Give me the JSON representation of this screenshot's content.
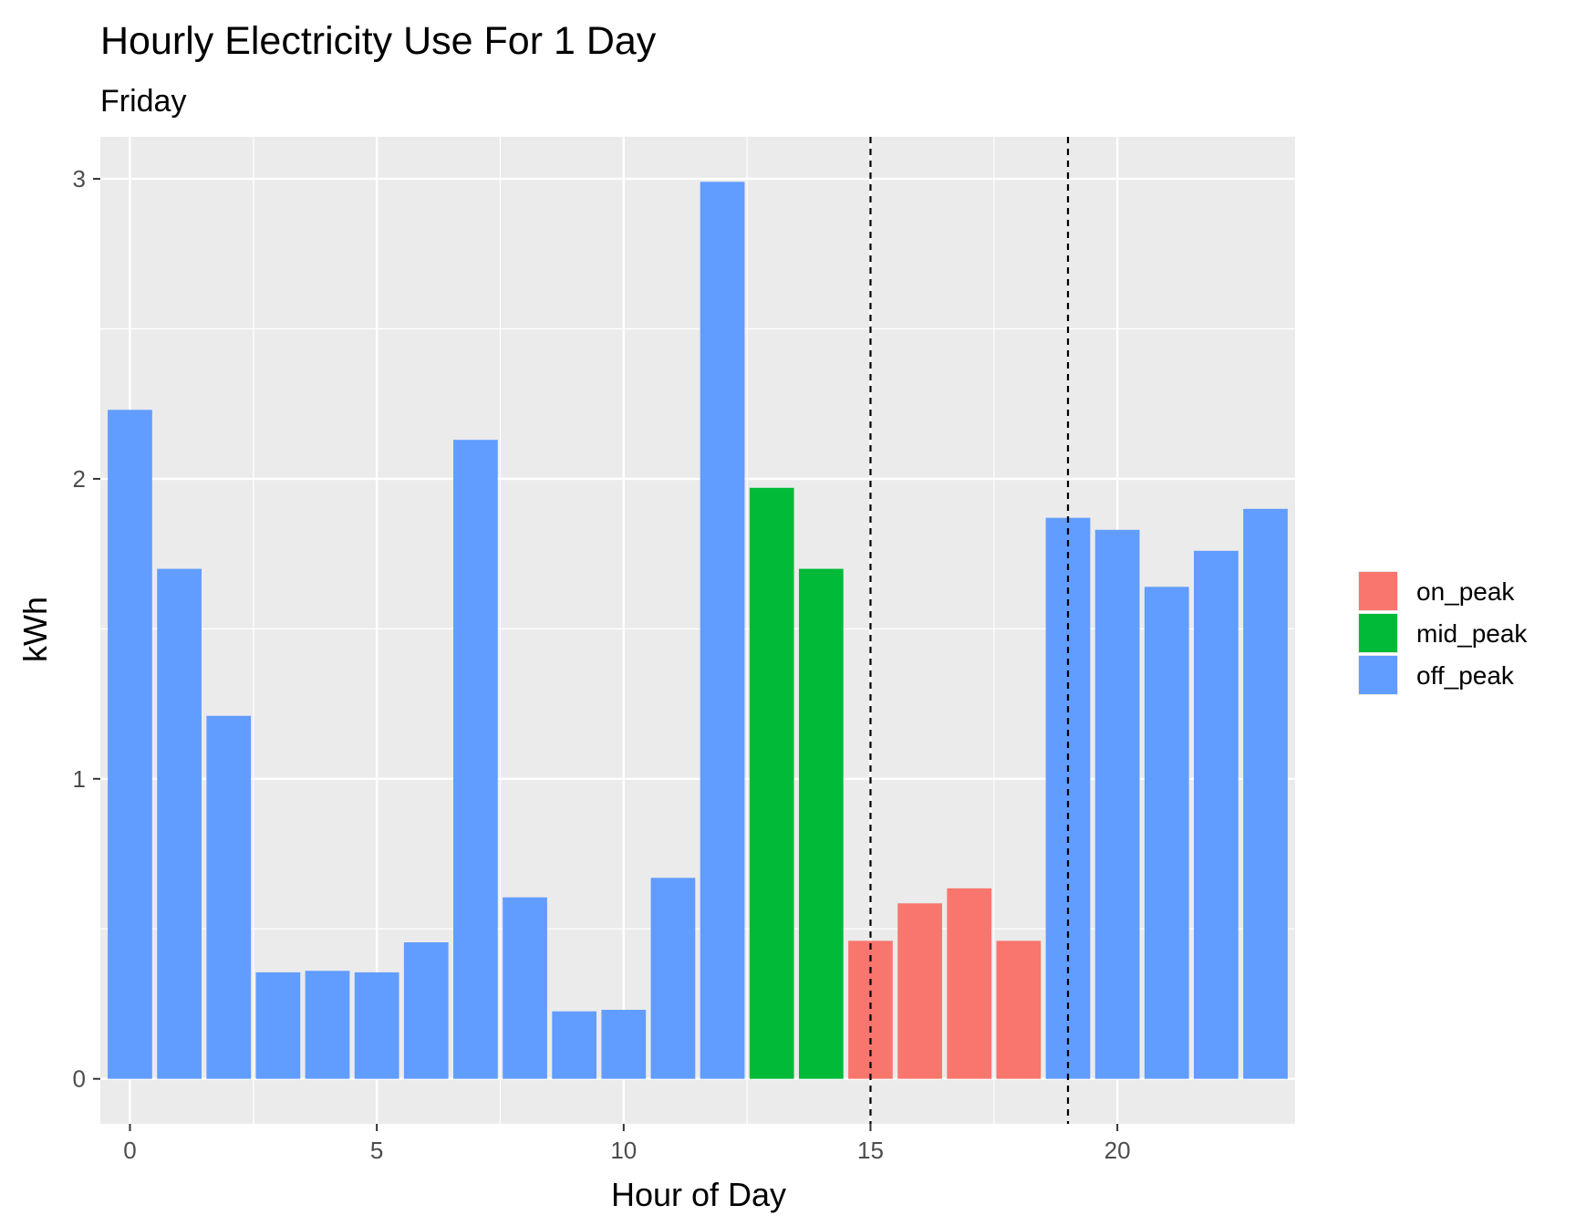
{
  "chart_data": {
    "type": "bar",
    "title": "Hourly Electricity Use For 1 Day",
    "subtitle": "Friday",
    "xlabel": "Hour of Day",
    "ylabel": "kWh",
    "x": [
      0,
      1,
      2,
      3,
      4,
      5,
      6,
      7,
      8,
      9,
      10,
      11,
      12,
      13,
      14,
      15,
      16,
      17,
      18,
      19,
      20,
      21,
      22,
      23
    ],
    "values": [
      2.23,
      1.7,
      1.21,
      0.355,
      0.36,
      0.355,
      0.455,
      2.13,
      0.605,
      0.225,
      0.23,
      0.67,
      2.99,
      1.97,
      1.7,
      0.46,
      0.585,
      0.635,
      0.46,
      1.87,
      1.83,
      1.64,
      1.76,
      1.9
    ],
    "period": [
      "off_peak",
      "off_peak",
      "off_peak",
      "off_peak",
      "off_peak",
      "off_peak",
      "off_peak",
      "off_peak",
      "off_peak",
      "off_peak",
      "off_peak",
      "off_peak",
      "off_peak",
      "mid_peak",
      "mid_peak",
      "on_peak",
      "on_peak",
      "on_peak",
      "on_peak",
      "off_peak",
      "off_peak",
      "off_peak",
      "off_peak",
      "off_peak"
    ],
    "legend": [
      {
        "key": "on_peak",
        "label": "on_peak",
        "color": "#F8766D"
      },
      {
        "key": "mid_peak",
        "label": "mid_peak",
        "color": "#00BA38"
      },
      {
        "key": "off_peak",
        "label": "off_peak",
        "color": "#619CFF"
      }
    ],
    "vlines": [
      15,
      19
    ],
    "xlim": [
      -0.6,
      23.6
    ],
    "ylim": [
      -0.15,
      3.14
    ],
    "x_ticks": [
      0,
      5,
      10,
      15,
      20
    ],
    "y_ticks": [
      0,
      1,
      2,
      3
    ],
    "grid": true,
    "legend_position": "right",
    "panel_background": "#EBEBEB",
    "grid_color": "#FFFFFF"
  }
}
